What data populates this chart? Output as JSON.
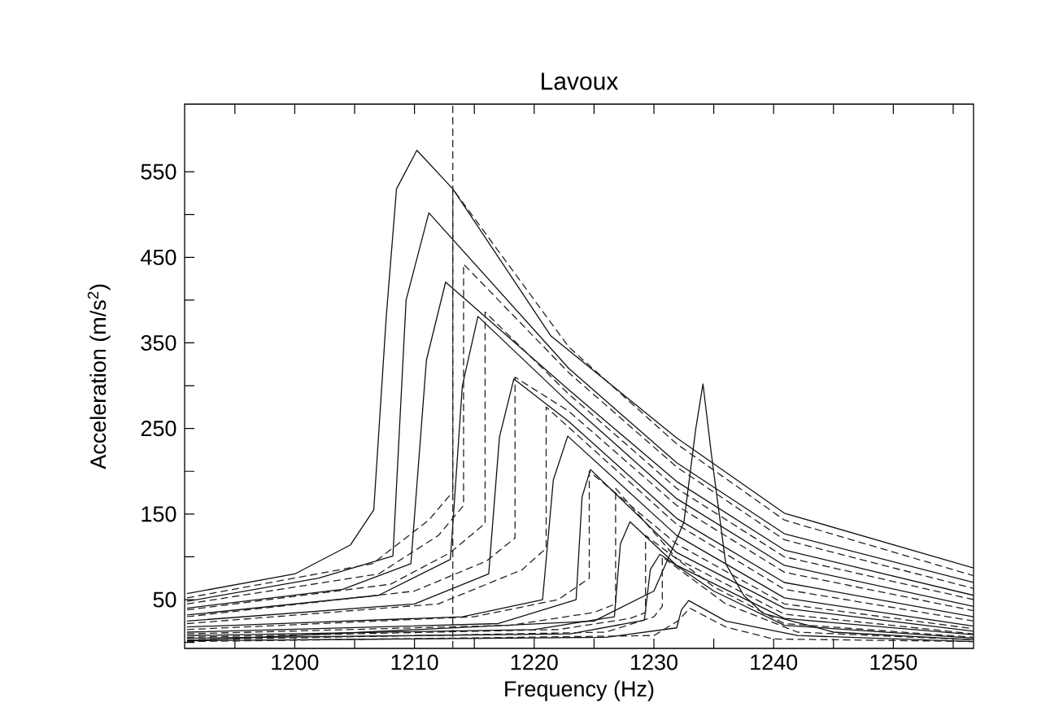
{
  "chart_data": {
    "type": "line",
    "title": "Lavoux",
    "xlabel": "Frequency (Hz)",
    "ylabel": "Acceleration (m/s$^{2}$)",
    "xlim": [
      1190.8,
      1256.7
    ],
    "ylim": [
      -7,
      629
    ],
    "xticks": [
      {
        "value": 1195,
        "label": null
      },
      1200,
      {
        "value": 1205,
        "label": null
      },
      1210,
      {
        "value": 1215,
        "label": null
      },
      1220,
      {
        "value": 1225,
        "label": null
      },
      1230,
      {
        "value": 1235,
        "label": null
      },
      1240,
      {
        "value": 1245,
        "label": null
      },
      1250,
      {
        "value": 1255,
        "label": null
      }
    ],
    "yticks": [
      {
        "value": 0,
        "label": null
      },
      50,
      {
        "value": 100,
        "label": null
      },
      150,
      {
        "value": 200,
        "label": null
      },
      250,
      {
        "value": 300,
        "label": null
      },
      350,
      {
        "value": 400,
        "label": null
      },
      450,
      {
        "value": 500,
        "label": null
      },
      550
    ],
    "grid": false,
    "marker": "none",
    "ref_lines": [
      {
        "axis": "x",
        "value": 1213.2,
        "line_style": "dashed",
        "color": "#222222"
      }
    ],
    "series": [
      {
        "color": "#111111",
        "line_style": "solid",
        "x": [
          1191,
          1200,
          1204.66,
          1206.6,
          1207.65,
          1208.5,
          1210.2,
          1213.2,
          1221.4,
          1231.9,
          1240.9,
          1256.7
        ],
        "values": [
          57,
          80,
          114,
          155,
          382,
          530,
          575,
          530,
          358,
          239,
          151,
          87
        ]
      },
      {
        "color": "#111111",
        "line_style": "solid",
        "x": [
          1191,
          1202,
          1208.2,
          1209.3,
          1211.2,
          1222.9,
          1231.9,
          1240.9,
          1256.7
        ],
        "values": [
          48,
          75,
          101,
          400,
          502,
          320,
          210,
          127,
          70
        ]
      },
      {
        "color": "#111111",
        "line_style": "solid",
        "x": [
          1191,
          1204,
          1209.7,
          1211,
          1212.6,
          1222.9,
          1231.9,
          1240.9,
          1256.7
        ],
        "values": [
          40,
          62,
          92,
          330,
          421,
          295,
          188,
          108,
          55
        ]
      },
      {
        "color": "#111111",
        "line_style": "solid",
        "x": [
          1191,
          1207,
          1213,
          1214,
          1215.3,
          1222.9,
          1231.9,
          1240.9,
          1256.7
        ],
        "values": [
          32,
          55,
          97,
          300,
          381,
          280,
          168,
          90,
          42
        ]
      },
      {
        "color": "#111111",
        "line_style": "solid",
        "x": [
          1191,
          1210,
          1216.2,
          1217.1,
          1218.3,
          1222.9,
          1231.9,
          1240.9,
          1256.7
        ],
        "values": [
          25,
          45,
          80,
          240,
          308,
          258,
          145,
          70,
          30
        ]
      },
      {
        "color": "#111111",
        "line_style": "solid",
        "x": [
          1191,
          1214,
          1220.7,
          1221.6,
          1222.8,
          1231.9,
          1240.9,
          1256.7
        ],
        "values": [
          18,
          30,
          50,
          190,
          241,
          125,
          52,
          19
        ]
      },
      {
        "color": "#111111",
        "line_style": "solid",
        "x": [
          1191,
          1217,
          1223.5,
          1224,
          1224.7,
          1231.9,
          1240.9,
          1256.7
        ],
        "values": [
          12,
          22,
          50,
          170,
          202,
          105,
          40,
          13
        ]
      },
      {
        "color": "#111111",
        "line_style": "solid",
        "x": [
          1191,
          1220,
          1226.7,
          1227.2,
          1228,
          1231.9,
          1240.9,
          1256.7
        ],
        "values": [
          8,
          15,
          30,
          115,
          141,
          90,
          28,
          9
        ]
      },
      {
        "color": "#111111",
        "line_style": "solid",
        "x": [
          1191,
          1223,
          1229.2,
          1229.7,
          1230.5,
          1235,
          1240.9,
          1256.7
        ],
        "values": [
          5,
          10,
          26,
          85,
          103,
          60,
          20,
          5
        ]
      },
      {
        "color": "#111111",
        "line_style": "solid",
        "x": [
          1191,
          1226,
          1231.9,
          1232.3,
          1232.9,
          1236,
          1242,
          1256.7
        ],
        "values": [
          2,
          6,
          17,
          38,
          49,
          25,
          8,
          1
        ]
      },
      {
        "color": "#111111",
        "line_style": "solid",
        "x": [
          1191,
          1225,
          1230,
          1232.5,
          1233.5,
          1234.1,
          1234.8,
          1236,
          1237.5,
          1239.1,
          1245,
          1256.7
        ],
        "values": [
          2,
          25,
          60,
          140,
          250,
          302,
          220,
          92,
          55,
          34,
          12,
          3
        ]
      },
      {
        "color": "#222222",
        "line_style": "dashed",
        "x": [
          1191,
          1206.5,
          1211.2,
          1213.2,
          1213.2,
          1222.9,
          1231.9,
          1240.9,
          1256.7
        ],
        "values": [
          52,
          92,
          143,
          176,
          530,
          345,
          232,
          143,
          78
        ]
      },
      {
        "color": "#222222",
        "line_style": "dashed",
        "x": [
          1191,
          1207,
          1212,
          1214.1,
          1214.1,
          1222.9,
          1231.9,
          1240.9,
          1256.7
        ],
        "values": [
          45,
          80,
          125,
          160,
          442,
          315,
          205,
          120,
          63
        ]
      },
      {
        "color": "#222222",
        "line_style": "dashed",
        "x": [
          1191,
          1208,
          1213,
          1215.9,
          1215.9,
          1222.9,
          1231.9,
          1240.9,
          1256.7
        ],
        "values": [
          38,
          68,
          105,
          139,
          386,
          290,
          180,
          100,
          50
        ]
      },
      {
        "color": "#222222",
        "line_style": "dashed",
        "x": [
          1191,
          1210,
          1216,
          1218.4,
          1218.4,
          1222.9,
          1231.9,
          1240.9,
          1256.7
        ],
        "values": [
          30,
          60,
          95,
          122,
          310,
          270,
          160,
          82,
          37
        ]
      },
      {
        "color": "#222222",
        "line_style": "dashed",
        "x": [
          1191,
          1212,
          1219,
          1221,
          1221,
          1231.9,
          1240.9,
          1256.7
        ],
        "values": [
          22,
          45,
          85,
          110,
          275,
          138,
          62,
          25
        ]
      },
      {
        "color": "#222222",
        "line_style": "dashed",
        "x": [
          1191,
          1215,
          1222,
          1224.6,
          1224.6,
          1231.9,
          1240.9,
          1256.7
        ],
        "values": [
          15,
          30,
          50,
          75,
          200,
          115,
          45,
          16
        ]
      },
      {
        "color": "#222222",
        "line_style": "dashed",
        "x": [
          1191,
          1218,
          1225,
          1226.8,
          1226.8,
          1231.9,
          1240.9,
          1256.7
        ],
        "values": [
          10,
          20,
          35,
          45,
          180,
          98,
          33,
          10
        ]
      },
      {
        "color": "#222222",
        "line_style": "dashed",
        "x": [
          1191,
          1222,
          1228,
          1229.3,
          1229.3,
          1235,
          1240.9,
          1256.7
        ],
        "values": [
          6,
          15,
          28,
          35,
          125,
          65,
          22,
          6
        ]
      },
      {
        "color": "#222222",
        "line_style": "dashed",
        "x": [
          1191,
          1226,
          1230,
          1230.7,
          1230.7,
          1236,
          1242,
          1256.7
        ],
        "values": [
          3,
          12,
          30,
          42,
          100,
          45,
          12,
          3
        ]
      },
      {
        "color": "#222222",
        "line_style": "dashed",
        "x": [
          1191,
          1230,
          1232,
          1233,
          1236,
          1240,
          1256.7
        ],
        "values": [
          1,
          8,
          25,
          40,
          18,
          4,
          1
        ]
      }
    ]
  }
}
